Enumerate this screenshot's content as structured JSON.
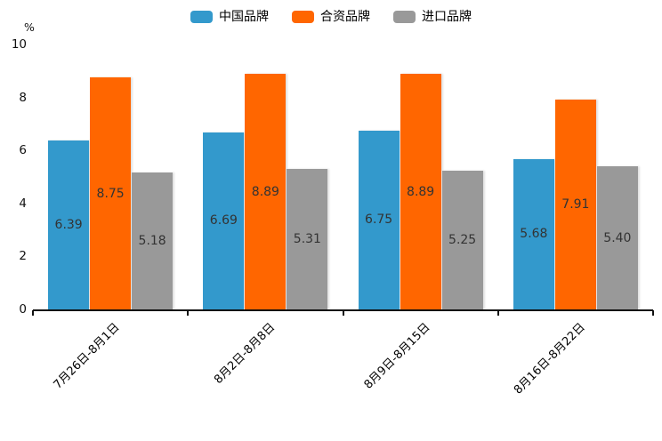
{
  "chart_data": {
    "type": "bar",
    "ylabel": "%",
    "ylim": [
      0,
      10
    ],
    "y_ticks": [
      0,
      2,
      4,
      6,
      8,
      10
    ],
    "grid": false,
    "legend_position": "top-center",
    "value_labels": "inside-center",
    "categories": [
      "7月26日-8月1日",
      "8月2日-8月8日",
      "8月9日-8月15日",
      "8月16日-8月22日"
    ],
    "series": [
      {
        "name": "中国品牌",
        "color": "#3399CC",
        "values": [
          6.39,
          6.69,
          6.75,
          5.68
        ]
      },
      {
        "name": "合资品牌",
        "color": "#FF6600",
        "values": [
          8.75,
          8.89,
          8.89,
          7.91
        ]
      },
      {
        "name": "进口品牌",
        "color": "#999999",
        "values": [
          5.18,
          5.31,
          5.25,
          5.4
        ]
      }
    ]
  },
  "colors": {
    "background": "#FFFFFF",
    "axis": "#111111",
    "bar_value_label": "#333333",
    "tick_label": "#111111"
  }
}
